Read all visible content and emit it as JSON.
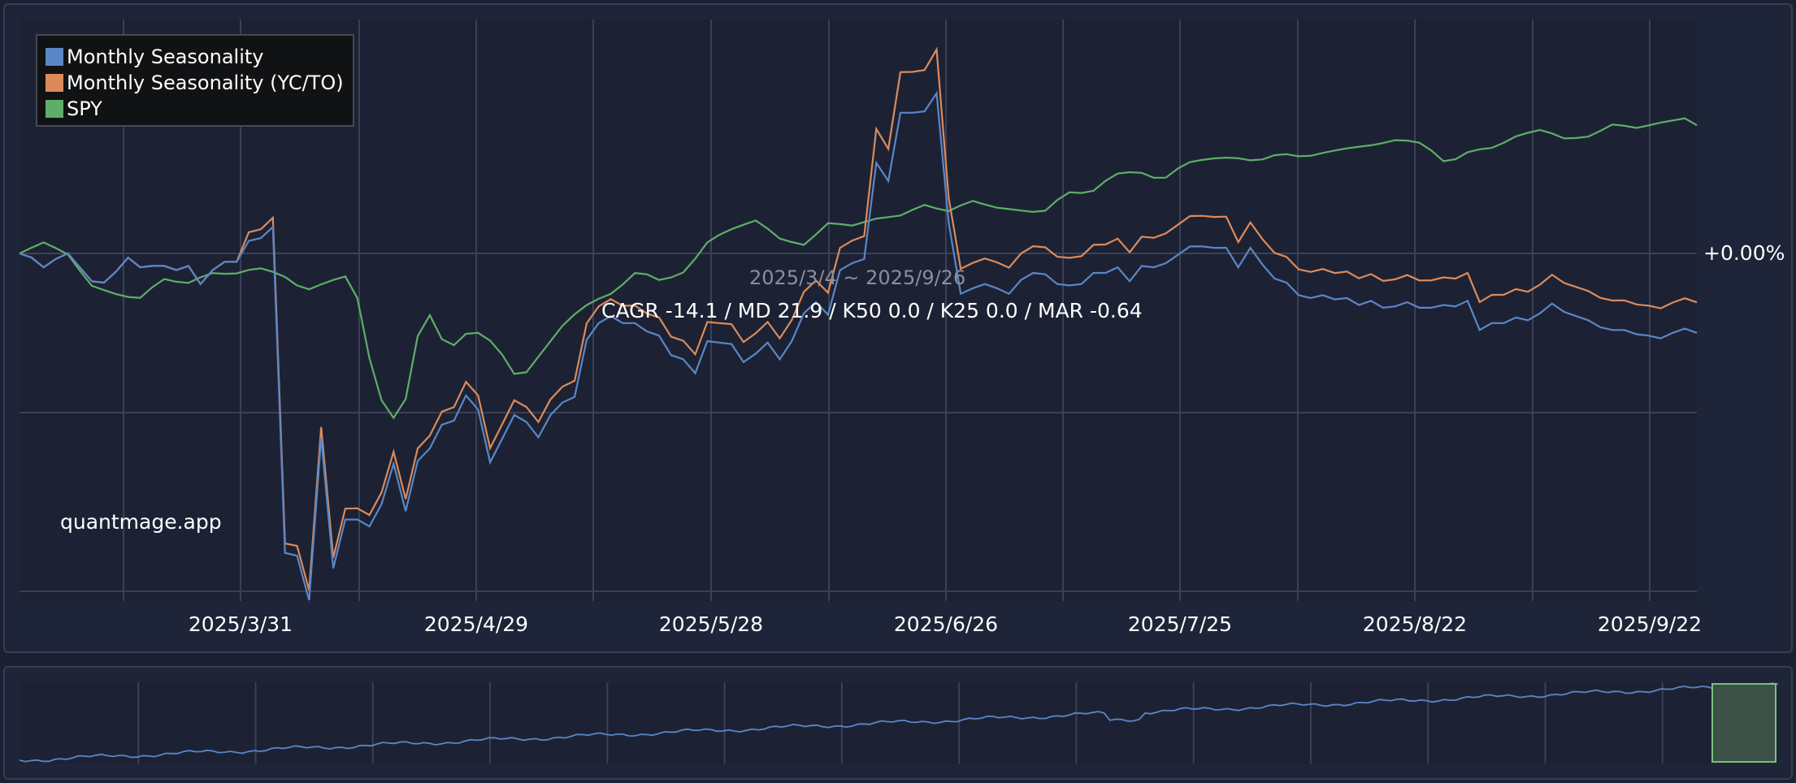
{
  "chart_data": {
    "type": "line",
    "title": "",
    "date_range": "2025/3/4 ~ 2025/9/26",
    "stats": "CAGR -14.1 / MD 21.9 / K50 0.0 / K25 0.0 / MAR -0.64",
    "watermark": "quantmage.app",
    "zero_label": "+0.00%",
    "x_tick_labels": [
      "2025/3/31",
      "2025/4/29",
      "2025/5/28",
      "2025/6/26",
      "2025/7/25",
      "2025/8/22",
      "2025/9/22"
    ],
    "legend_position": "top-left",
    "grid": true,
    "y_unit": "percent return",
    "series": [
      {
        "name": "Monthly Seasonality",
        "color": "#5b86c6",
        "values": [
          0,
          -0.3,
          -1.0,
          -0.4,
          0,
          -1.0,
          -2.0,
          -2.1,
          -1.3,
          -0.3,
          -1.0,
          -0.9,
          -0.9,
          -1.2,
          -0.9,
          -2.2,
          -1.2,
          -0.6,
          -0.6,
          0.9,
          1.1,
          1.9,
          -21.5,
          -21.7,
          -24.9,
          -13.2,
          -22.6,
          -19.1,
          -19.1,
          -19.6,
          -18.0,
          -15.1,
          -18.5,
          -14.9,
          -14.0,
          -12.3,
          -12.0,
          -10.2,
          -11.2,
          -15.0,
          -13.3,
          -11.6,
          -12.1,
          -13.2,
          -11.6,
          -10.7,
          -10.3,
          -6.2,
          -5.0,
          -4.5,
          -5.0,
          -5.0,
          -5.6,
          -5.9,
          -7.3,
          -7.6,
          -8.6,
          -6.3,
          -6.4,
          -6.5,
          -7.8,
          -7.2,
          -6.4,
          -7.6,
          -6.3,
          -4.3,
          -3.5,
          -4.4,
          -1.2,
          -0.7,
          -0.4,
          6.5,
          5.2,
          10.1,
          10.1,
          10.2,
          11.5,
          2.2,
          -2.9,
          -2.5,
          -2.2,
          -2.5,
          -2.9,
          -1.9,
          -1.4,
          -1.5,
          -2.2,
          -2.3,
          -2.2,
          -1.4,
          -1.4,
          -1.0,
          -2.0,
          -0.9,
          -1.0,
          -0.7,
          -0.1,
          0.5,
          0.5,
          0.4,
          0.4,
          -1.0,
          0.4,
          -0.8,
          -1.8,
          -2.1,
          -3.0,
          -3.2,
          -3.0,
          -3.3,
          -3.2,
          -3.7,
          -3.4,
          -3.9,
          -3.8,
          -3.5,
          -3.9,
          -3.9,
          -3.7,
          -3.8,
          -3.4,
          -5.5,
          -5.0,
          -5.0,
          -4.6,
          -4.8,
          -4.3,
          -3.6,
          -4.2,
          -4.5,
          -4.8,
          -5.3,
          -5.5,
          -5.5,
          -5.8,
          -5.9,
          -6.1,
          -5.7,
          -5.4,
          -5.7
        ],
        "note": "values in percent, chart axis not printed"
      },
      {
        "name": "Monthly Seasonality (YC/TO)",
        "color": "#dd8a5a",
        "values": []
      },
      {
        "name": "SPY",
        "color": "#5fae68",
        "values": []
      }
    ]
  },
  "legend": {
    "items": [
      {
        "label": "Monthly Seasonality",
        "color": "#5b86c6"
      },
      {
        "label": "Monthly Seasonality (YC/TO)",
        "color": "#dd8a5a"
      },
      {
        "label": "SPY",
        "color": "#5fae68"
      }
    ]
  },
  "colors": {
    "background": "#1f2538",
    "grid": "#3a4157",
    "brush": "#7dbf7d"
  }
}
